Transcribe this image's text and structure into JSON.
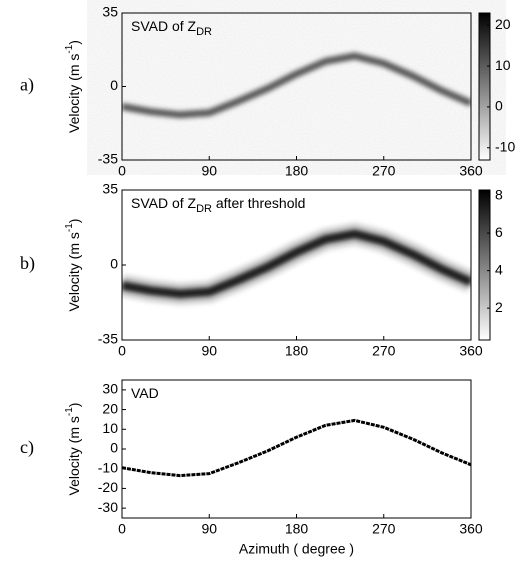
{
  "chart_data": [
    {
      "type": "heatmap",
      "panel_label": "a)",
      "title": "SVAD of Z",
      "title_subscript": "DR",
      "ylabel": "Velocity (m s",
      "ylabel_superscript": "-1",
      "ylabel_suffix": ")",
      "x": [
        0,
        30,
        60,
        90,
        120,
        150,
        180,
        210,
        240,
        270,
        300,
        330,
        360
      ],
      "values": [
        -9.5,
        -12,
        -13.5,
        -12.5,
        -7,
        -1,
        6,
        12,
        14.5,
        11,
        5,
        -2,
        -8
      ],
      "xlim": [
        0,
        360
      ],
      "xticks": [
        0,
        90,
        180,
        270,
        360
      ],
      "ylim": [
        -35,
        35
      ],
      "yticks": [
        -35,
        0,
        35
      ],
      "clim": [
        -13,
        23
      ],
      "cticks": [
        -10,
        0,
        10,
        20
      ],
      "colormap": "gray_r",
      "color": "#555555"
    },
    {
      "type": "heatmap",
      "panel_label": "b)",
      "title": "SVAD of Z",
      "title_subscript": "DR",
      "title_suffix": " after threshold",
      "ylabel": "Velocity (m s",
      "ylabel_superscript": "-1",
      "ylabel_suffix": ")",
      "x": [
        0,
        30,
        60,
        90,
        120,
        150,
        180,
        210,
        240,
        270,
        300,
        330,
        360
      ],
      "values": [
        -9.5,
        -12,
        -13.5,
        -12.5,
        -7,
        -1,
        6,
        12,
        14.5,
        11,
        5,
        -2,
        -8
      ],
      "xlim": [
        0,
        360
      ],
      "xticks": [
        0,
        90,
        180,
        270,
        360
      ],
      "ylim": [
        -35,
        35
      ],
      "yticks": [
        -35,
        0,
        35
      ],
      "clim": [
        0.3,
        8.3
      ],
      "cticks": [
        2,
        4,
        6,
        8
      ],
      "colormap": "gray_r",
      "color": "#1a1a1a"
    },
    {
      "type": "line",
      "panel_label": "c)",
      "title": "VAD",
      "ylabel": "Velocity (m s",
      "ylabel_superscript": "-1",
      "ylabel_suffix": ")",
      "xlabel": "Azimuth ( degree )",
      "x": [
        0,
        30,
        60,
        90,
        120,
        150,
        180,
        210,
        240,
        270,
        300,
        330,
        360
      ],
      "values": [
        -9.5,
        -12,
        -13.5,
        -12.5,
        -7,
        -1,
        6,
        12,
        14.5,
        11,
        5,
        -2,
        -8
      ],
      "xlim": [
        0,
        360
      ],
      "xticks": [
        0,
        90,
        180,
        270,
        360
      ],
      "ylim": [
        -35,
        35
      ],
      "yticks": [
        -30,
        -20,
        -10,
        0,
        10,
        20,
        30
      ],
      "color": "#000000"
    }
  ]
}
